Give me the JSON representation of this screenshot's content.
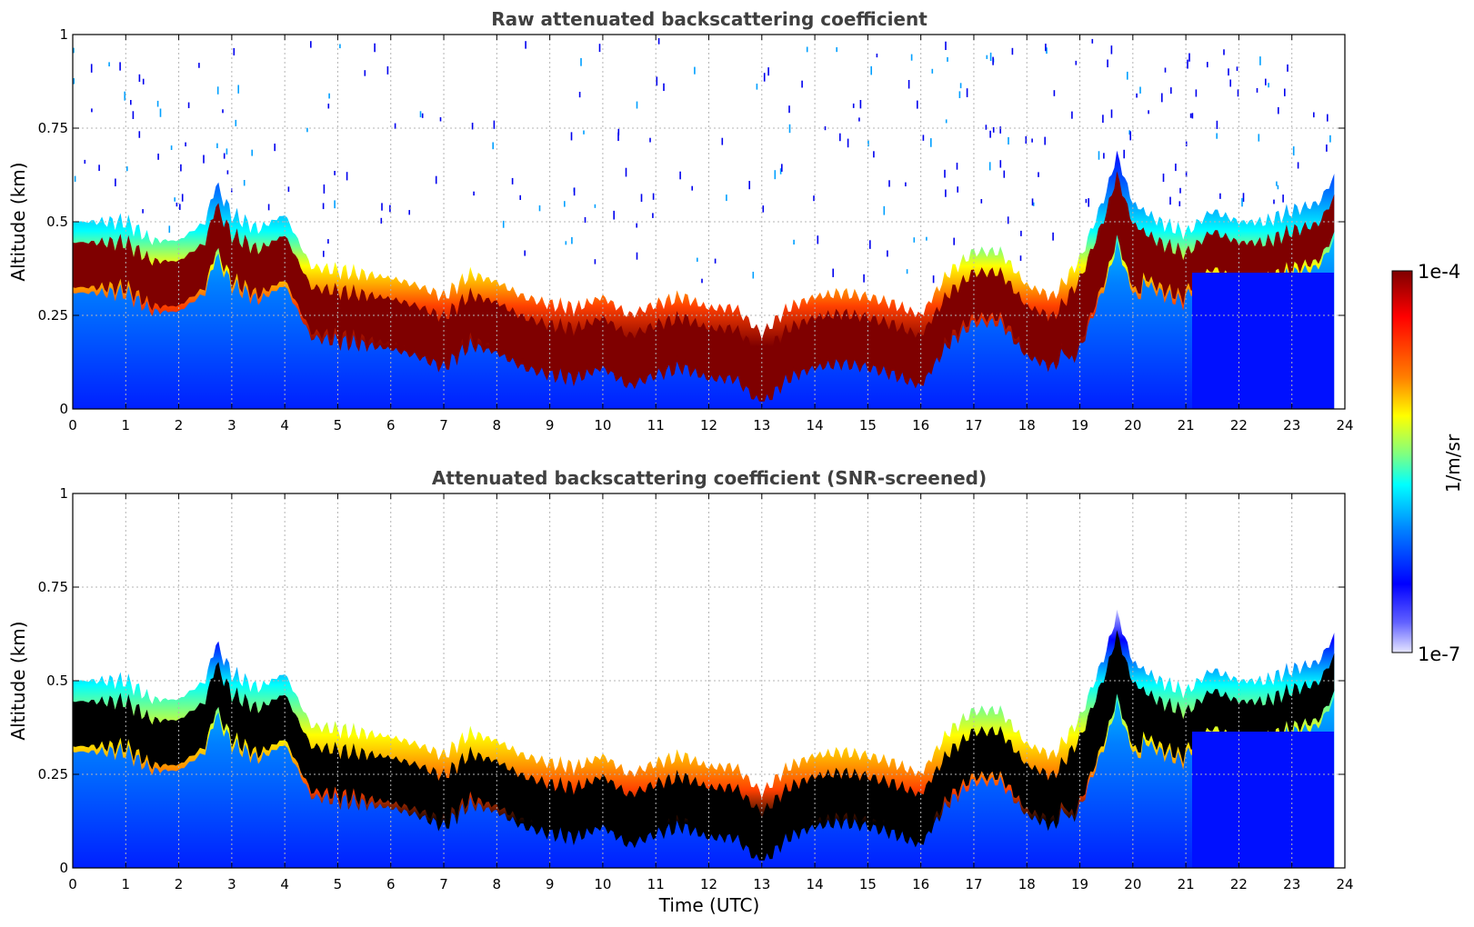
{
  "chart_data": [
    {
      "type": "heatmap",
      "title": "Raw attenuated backscattering coefficient",
      "xlabel": "",
      "ylabel": "Altitude (km)",
      "xlim": [
        0,
        24
      ],
      "ylim": [
        0,
        1
      ],
      "xticks": [
        "0",
        "1",
        "2",
        "3",
        "4",
        "5",
        "6",
        "7",
        "8",
        "9",
        "10",
        "11",
        "12",
        "13",
        "14",
        "15",
        "16",
        "17",
        "18",
        "19",
        "20",
        "21",
        "22",
        "23",
        "24"
      ],
      "yticks": [
        "0",
        "0.25",
        "0.5",
        "0.75",
        "1"
      ],
      "grid": true,
      "layer_top_km": {
        "time_utc": [
          0,
          0.5,
          1,
          1.5,
          2,
          2.5,
          2.7,
          3,
          3.5,
          4,
          4.5,
          5,
          5.5,
          6,
          6.5,
          7,
          7.5,
          8,
          8.5,
          9,
          9.5,
          10,
          10.5,
          11,
          11.5,
          12,
          12.5,
          13,
          13.5,
          14,
          14.5,
          15,
          15.5,
          16,
          16.5,
          17,
          17.5,
          18,
          18.5,
          19,
          19.5,
          19.7,
          20,
          20.5,
          21,
          21.5,
          22,
          22.5,
          23,
          23.5,
          23.8
        ],
        "altitude_km": [
          0.5,
          0.5,
          0.5,
          0.45,
          0.45,
          0.5,
          0.6,
          0.52,
          0.48,
          0.52,
          0.38,
          0.37,
          0.36,
          0.35,
          0.33,
          0.3,
          0.36,
          0.34,
          0.3,
          0.28,
          0.27,
          0.3,
          0.25,
          0.28,
          0.3,
          0.27,
          0.27,
          0.2,
          0.27,
          0.3,
          0.31,
          0.3,
          0.28,
          0.25,
          0.36,
          0.42,
          0.42,
          0.33,
          0.3,
          0.4,
          0.58,
          0.68,
          0.55,
          0.5,
          0.47,
          0.53,
          0.5,
          0.5,
          0.53,
          0.55,
          0.62
        ]
      }
    },
    {
      "type": "heatmap",
      "title": "Attenuated backscattering coefficient (SNR-screened)",
      "xlabel": "Time (UTC)",
      "ylabel": "Altitude (km)",
      "xlim": [
        0,
        24
      ],
      "ylim": [
        0,
        1
      ],
      "xticks": [
        "0",
        "1",
        "2",
        "3",
        "4",
        "5",
        "6",
        "7",
        "8",
        "9",
        "10",
        "11",
        "12",
        "13",
        "14",
        "15",
        "16",
        "17",
        "18",
        "19",
        "20",
        "21",
        "22",
        "23",
        "24"
      ],
      "yticks": [
        "0",
        "0.25",
        "0.5",
        "0.75",
        "1"
      ],
      "grid": true
    }
  ],
  "colorbar": {
    "label": "1/m/sr",
    "max_label": "1e-4",
    "min_label": "1e-7",
    "colors": [
      "#7f0000",
      "#ff0000",
      "#ff8000",
      "#ffff00",
      "#80ff80",
      "#00ffff",
      "#0080ff",
      "#0000ff",
      "#6060ff",
      "#e6e6ff"
    ]
  }
}
